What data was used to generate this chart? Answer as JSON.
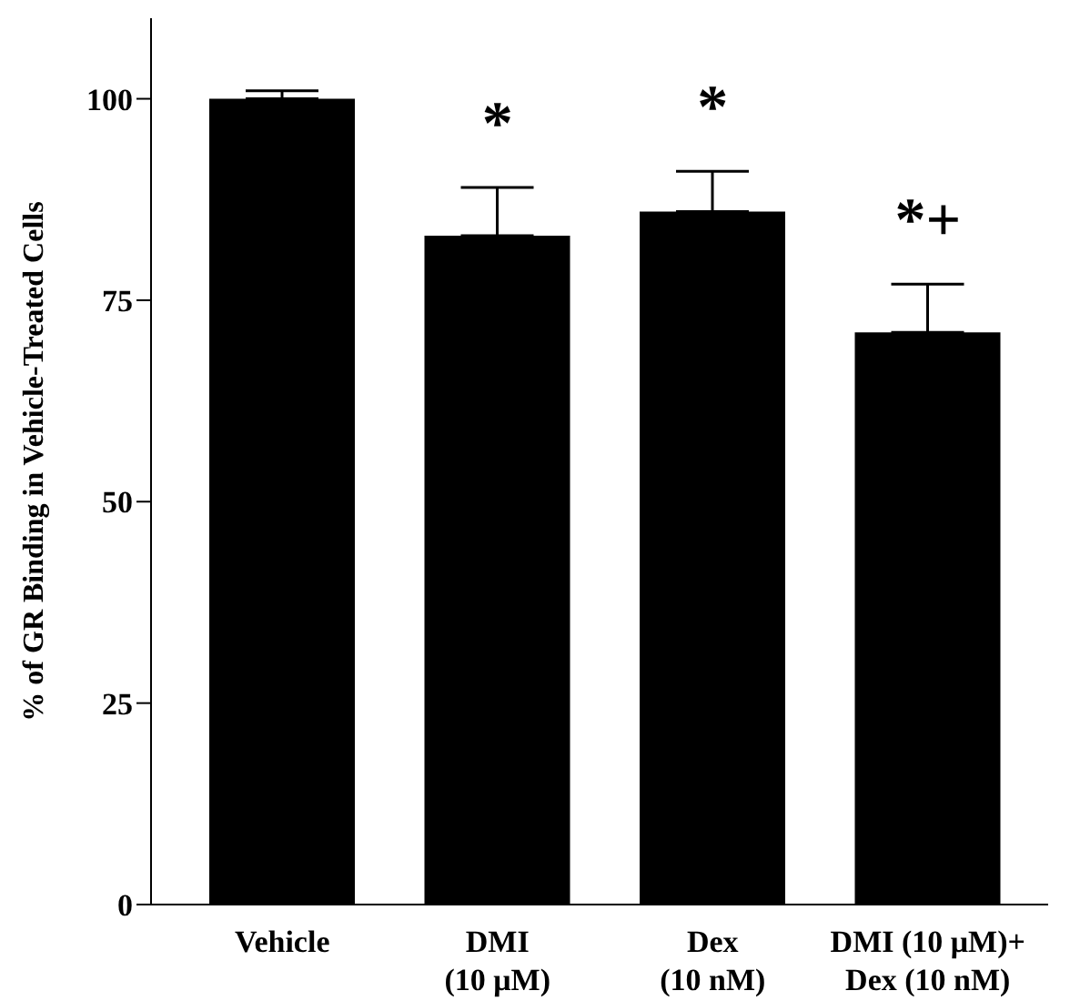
{
  "chart_data": {
    "type": "bar",
    "ylabel": "% of GR Binding in Vehicle-Treated Cells",
    "categories": [
      "Vehicle",
      "DMI\n(10 μM)",
      "Dex\n(10 nM)",
      "DMI (10 μM)+\nDex (10 nM)"
    ],
    "values": [
      100,
      83,
      86,
      71
    ],
    "color": "#000000",
    "errors": [
      [
        100,
        101
      ],
      [
        83,
        89
      ],
      [
        86,
        91
      ],
      [
        71,
        77
      ]
    ],
    "ylim": [
      0,
      110
    ],
    "yticks": [
      0,
      25,
      50,
      75,
      100
    ],
    "grid": false,
    "legend": false,
    "annotations": [
      {
        "text": "*",
        "x": "DMI\n(10 μM)",
        "y": 89
      },
      {
        "text": "*",
        "x": "Dex\n(10 nM)",
        "y": 91
      },
      {
        "text": "*+",
        "x": "DMI (10 μM)+\nDex (10 nM)",
        "y": 77
      }
    ]
  }
}
